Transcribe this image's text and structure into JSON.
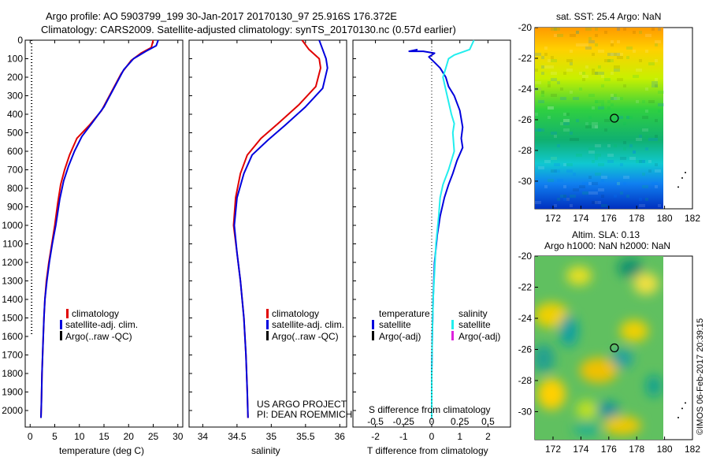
{
  "header": {
    "line1": "Argo profile: AO 5903799_199 30-Jan-2017 20170130_97 25.916S 176.372E",
    "line2": "Climatology: CARS2009. Satellite-adjusted climatology: synTS_20170130.nc (0.57d earlier)"
  },
  "colors": {
    "climatology": "#e00000",
    "satellite": "#0000dd",
    "argo": "#000000",
    "salinity_satellite": "#22eeee",
    "argo_adj_salinity": "#dd22dd"
  },
  "chart_data": [
    {
      "type": "line",
      "panel": "temperature",
      "xlabel": "temperature (deg C)",
      "xticks": [
        0,
        5,
        10,
        15,
        20,
        25,
        30
      ],
      "xlim": [
        -1,
        31
      ],
      "ylim": [
        0,
        2050
      ],
      "yticks": [
        0,
        100,
        200,
        300,
        400,
        500,
        600,
        700,
        800,
        900,
        1000,
        1100,
        1200,
        1300,
        1400,
        1500,
        1600,
        1700,
        1800,
        1900,
        2000
      ],
      "legend": [
        "climatology",
        "satellite-adj. clim.",
        "Argo(..raw -QC)"
      ],
      "series": [
        {
          "name": "climatology",
          "color_key": "climatology",
          "points": [
            [
              25,
              0
            ],
            [
              24.6,
              40
            ],
            [
              22.5,
              70
            ],
            [
              20.5,
              110
            ],
            [
              18.5,
              180
            ],
            [
              16.5,
              280
            ],
            [
              14.5,
              380
            ],
            [
              12,
              460
            ],
            [
              9.5,
              530
            ],
            [
              8,
              620
            ],
            [
              7,
              700
            ],
            [
              6.2,
              780
            ],
            [
              5.6,
              880
            ],
            [
              5,
              1000
            ],
            [
              4.4,
              1100
            ],
            [
              3.8,
              1200
            ],
            [
              3.3,
              1300
            ],
            [
              3,
              1400
            ],
            [
              2.8,
              1500
            ],
            [
              2.6,
              1650
            ],
            [
              2.4,
              1800
            ],
            [
              2.3,
              1950
            ],
            [
              2.2,
              2040
            ]
          ]
        },
        {
          "name": "satellite-adj. clim.",
          "color_key": "satellite",
          "points": [
            [
              26,
              0
            ],
            [
              25.6,
              30
            ],
            [
              23.5,
              60
            ],
            [
              21,
              100
            ],
            [
              19,
              160
            ],
            [
              17,
              260
            ],
            [
              15,
              360
            ],
            [
              12.5,
              450
            ],
            [
              10.5,
              520
            ],
            [
              9,
              600
            ],
            [
              7.8,
              680
            ],
            [
              6.8,
              760
            ],
            [
              6,
              860
            ],
            [
              5.2,
              1000
            ],
            [
              4.5,
              1100
            ],
            [
              3.9,
              1200
            ],
            [
              3.4,
              1300
            ],
            [
              3,
              1400
            ],
            [
              2.8,
              1500
            ],
            [
              2.6,
              1650
            ],
            [
              2.4,
              1800
            ],
            [
              2.3,
              1950
            ],
            [
              2.2,
              2040
            ]
          ]
        }
      ],
      "argo_marker": {
        "x": 0.3,
        "ymin": 0,
        "ymax": 1600
      }
    },
    {
      "type": "line",
      "panel": "salinity",
      "xlabel": "salinity",
      "xticks": [
        34,
        34.5,
        35,
        35.5,
        36
      ],
      "xlim": [
        33.8,
        36.1
      ],
      "ylim": [
        0,
        2050
      ],
      "legend": [
        "climatology",
        "satellite-adj. clim.",
        "Argo(..raw -QC)"
      ],
      "annotation": [
        "US ARGO PROJECT",
        "PI: DEAN ROEMMICH"
      ],
      "series": [
        {
          "name": "climatology",
          "color_key": "climatology",
          "points": [
            [
              35.45,
              0
            ],
            [
              35.55,
              50
            ],
            [
              35.7,
              100
            ],
            [
              35.72,
              150
            ],
            [
              35.65,
              250
            ],
            [
              35.4,
              350
            ],
            [
              35.1,
              450
            ],
            [
              34.85,
              530
            ],
            [
              34.65,
              620
            ],
            [
              34.55,
              720
            ],
            [
              34.48,
              850
            ],
            [
              34.45,
              1000
            ],
            [
              34.5,
              1150
            ],
            [
              34.55,
              1300
            ],
            [
              34.6,
              1500
            ],
            [
              34.63,
              1700
            ],
            [
              34.65,
              1900
            ],
            [
              34.66,
              2040
            ]
          ]
        },
        {
          "name": "satellite-adj. clim.",
          "color_key": "satellite",
          "points": [
            [
              35.7,
              0
            ],
            [
              35.75,
              50
            ],
            [
              35.8,
              100
            ],
            [
              35.82,
              150
            ],
            [
              35.75,
              260
            ],
            [
              35.5,
              360
            ],
            [
              35.2,
              460
            ],
            [
              34.95,
              540
            ],
            [
              34.72,
              620
            ],
            [
              34.6,
              720
            ],
            [
              34.5,
              850
            ],
            [
              34.46,
              1000
            ],
            [
              34.5,
              1150
            ],
            [
              34.55,
              1300
            ],
            [
              34.6,
              1500
            ],
            [
              34.63,
              1700
            ],
            [
              34.65,
              1900
            ],
            [
              34.66,
              2040
            ]
          ]
        }
      ]
    },
    {
      "type": "line",
      "panel": "difference",
      "xlabel": "T difference from climatology",
      "xticks": [
        -2,
        -1,
        0,
        1,
        2
      ],
      "xlim": [
        -2.8,
        2.8
      ],
      "top_xlabel": "S difference from climatology",
      "top_xticks": [
        "-0.5",
        "-0.25",
        "0",
        "0.25",
        "0.5"
      ],
      "ylim": [
        0,
        2050
      ],
      "legend_temperature": [
        "temperature",
        "satellite",
        "Argo(-adj)"
      ],
      "legend_salinity": [
        "salinity",
        "satellite",
        "Argo(-adj)"
      ],
      "series": [
        {
          "name": "satellite",
          "color_key": "satellite",
          "points": [
            [
              -0.5,
              50
            ],
            [
              -0.8,
              60
            ],
            [
              -0.3,
              60
            ],
            [
              0.1,
              70
            ],
            [
              -0.1,
              90
            ],
            [
              0.1,
              120
            ],
            [
              0.3,
              150
            ],
            [
              0.5,
              200
            ],
            [
              0.6,
              250
            ],
            [
              0.8,
              300
            ],
            [
              1,
              380
            ],
            [
              1.1,
              470
            ],
            [
              1.05,
              530
            ],
            [
              1.1,
              580
            ],
            [
              0.9,
              650
            ],
            [
              0.75,
              720
            ],
            [
              0.6,
              780
            ],
            [
              0.45,
              850
            ],
            [
              0.3,
              950
            ],
            [
              0.2,
              1050
            ],
            [
              0.1,
              1200
            ],
            [
              0.05,
              1400
            ],
            [
              0.02,
              1600
            ],
            [
              0,
              1800
            ],
            [
              0,
              2040
            ]
          ]
        },
        {
          "name": "salinity satellite",
          "color_key": "salinity_satellite",
          "points": [
            [
              1.5,
              0
            ],
            [
              1.35,
              50
            ],
            [
              0.8,
              80
            ],
            [
              0.6,
              100
            ],
            [
              0.5,
              150
            ],
            [
              0.4,
              200
            ],
            [
              0.55,
              300
            ],
            [
              0.7,
              400
            ],
            [
              0.8,
              450
            ],
            [
              0.75,
              500
            ],
            [
              0.8,
              600
            ],
            [
              0.6,
              700
            ],
            [
              0.4,
              780
            ],
            [
              0.3,
              850
            ],
            [
              0.25,
              950
            ],
            [
              0.15,
              1100
            ],
            [
              0.1,
              1250
            ],
            [
              0.05,
              1400
            ],
            [
              0.02,
              1600
            ],
            [
              0,
              1800
            ],
            [
              0,
              2040
            ]
          ]
        }
      ]
    }
  ],
  "map_sst": {
    "title": "sat. SST: 25.4  Argo: NaN",
    "xticks": [
      172,
      174,
      176,
      178,
      180,
      182
    ],
    "yticks": [
      -20,
      -22,
      -24,
      -26,
      -28,
      -30
    ],
    "xlim": [
      170.7,
      182
    ],
    "ylim": [
      -31.8,
      -20
    ],
    "data_xmax": 180,
    "marker": [
      176.4,
      -25.9
    ]
  },
  "map_sla": {
    "title": "Altim. SLA: 0.13",
    "subtitle": "Argo h1000: NaN h2000: NaN",
    "xticks": [
      172,
      174,
      176,
      178,
      180,
      182
    ],
    "yticks": [
      -20,
      -22,
      -24,
      -26,
      -28,
      -30
    ],
    "xlim": [
      170.7,
      182
    ],
    "ylim": [
      -31.8,
      -20
    ],
    "data_xmax": 180,
    "marker": [
      176.4,
      -25.9
    ]
  },
  "credit": "©IMOS 06-Feb-2017 20:39:15"
}
